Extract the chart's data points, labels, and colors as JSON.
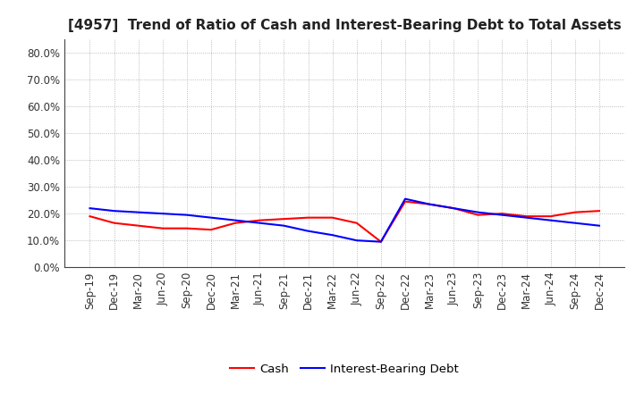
{
  "title": "[4957]  Trend of Ratio of Cash and Interest-Bearing Debt to Total Assets",
  "x_labels": [
    "Sep-19",
    "Dec-19",
    "Mar-20",
    "Jun-20",
    "Sep-20",
    "Dec-20",
    "Mar-21",
    "Jun-21",
    "Sep-21",
    "Dec-21",
    "Mar-22",
    "Jun-22",
    "Sep-22",
    "Dec-22",
    "Mar-23",
    "Jun-23",
    "Sep-23",
    "Dec-23",
    "Mar-24",
    "Jun-24",
    "Sep-24",
    "Dec-24"
  ],
  "cash": [
    0.19,
    0.165,
    0.155,
    0.145,
    0.145,
    0.14,
    0.165,
    0.175,
    0.18,
    0.185,
    0.185,
    0.165,
    0.095,
    0.245,
    0.235,
    0.22,
    0.195,
    0.2,
    0.19,
    0.19,
    0.205,
    0.21
  ],
  "interest_bearing_debt": [
    0.22,
    0.21,
    0.205,
    0.2,
    0.195,
    0.185,
    0.175,
    0.165,
    0.155,
    0.135,
    0.12,
    0.1,
    0.095,
    0.255,
    0.235,
    0.22,
    0.205,
    0.195,
    0.185,
    0.175,
    0.165,
    0.155
  ],
  "cash_color": "#FF0000",
  "debt_color": "#0000FF",
  "background_color": "#FFFFFF",
  "plot_bg_color": "#FFFFFF",
  "ylim": [
    0.0,
    0.85
  ],
  "yticks": [
    0.0,
    0.1,
    0.2,
    0.3,
    0.4,
    0.5,
    0.6,
    0.7,
    0.8
  ],
  "legend_labels": [
    "Cash",
    "Interest-Bearing Debt"
  ],
  "title_fontsize": 11,
  "tick_fontsize": 8.5,
  "legend_fontsize": 9.5,
  "grid_color": "#aaaaaa",
  "spine_color": "#444444",
  "title_color": "#222222"
}
